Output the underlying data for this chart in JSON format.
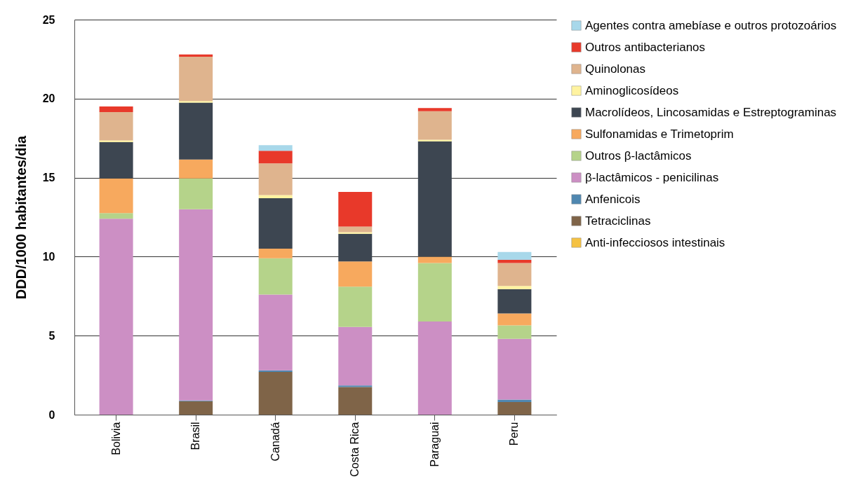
{
  "chart_data": {
    "type": "bar",
    "stacked": true,
    "ylabel": "DDD/1000 habitantes/dia",
    "categories": [
      "Bolivia",
      "Brasil",
      "Canadá",
      "Costa Rica",
      "Paraguai",
      "Peru"
    ],
    "ylim": [
      0,
      25
    ],
    "yticks": [
      0,
      5,
      10,
      15,
      20,
      25
    ],
    "grid": "y",
    "legend": "right",
    "series": [
      {
        "name": "Anti-infecciosos intestinais",
        "color": "#f5c242",
        "values": [
          0,
          0,
          0,
          0,
          0,
          0
        ]
      },
      {
        "name": "Tetraciclinas",
        "color": "#7f6448",
        "values": [
          0,
          0.85,
          2.7,
          1.75,
          0,
          0.8
        ]
      },
      {
        "name": "Anfenicois",
        "color": "#4f87b0",
        "values": [
          0,
          0.05,
          0.1,
          0.1,
          0,
          0.15
        ]
      },
      {
        "name": "β-lactâmicos - penicilinas",
        "color": "#cc8fc4",
        "values": [
          12.4,
          12.1,
          4.8,
          3.7,
          5.9,
          3.85
        ]
      },
      {
        "name": "Outros β-lactâmicos",
        "color": "#b5d38a",
        "values": [
          0.35,
          1.95,
          2.3,
          2.55,
          3.7,
          0.85
        ]
      },
      {
        "name": "Sulfonamidas e Trimetoprim",
        "color": "#f7a95e",
        "values": [
          2.2,
          1.2,
          0.6,
          1.6,
          0.4,
          0.75
        ]
      },
      {
        "name": "Macrolídeos, Lincosamidas e Estreptograminas",
        "color": "#3d4651",
        "values": [
          2.3,
          3.6,
          3.2,
          1.75,
          7.3,
          1.55
        ]
      },
      {
        "name": "Aminoglicosídeos",
        "color": "#fff3a0",
        "values": [
          0.1,
          0.1,
          0.2,
          0.1,
          0.1,
          0.2
        ]
      },
      {
        "name": "Quinolonas",
        "color": "#dfb48e",
        "values": [
          1.8,
          2.8,
          2.0,
          0.35,
          1.8,
          1.45
        ]
      },
      {
        "name": "Outros antibacterianos",
        "color": "#e8392a",
        "values": [
          0.35,
          0.15,
          0.8,
          2.2,
          0.2,
          0.2
        ]
      },
      {
        "name": "Agentes contra amebíase e outros protozoários",
        "color": "#a8d8ea",
        "values": [
          0,
          0,
          0.35,
          0,
          0,
          0.5
        ]
      }
    ]
  }
}
